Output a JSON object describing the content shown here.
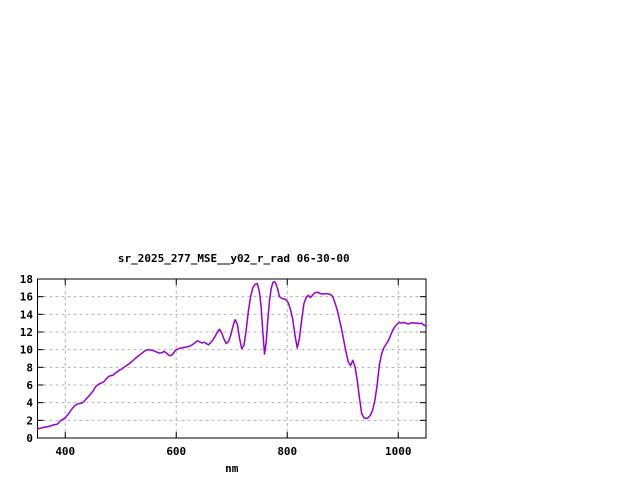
{
  "window": {
    "background": "#ffffff"
  },
  "colors": {
    "line": "#9400d3",
    "grid": "#b4b4b4",
    "border": "#000000",
    "text": "#000000"
  },
  "chart_data": {
    "type": "line",
    "title": "sr_2025_277_MSE__y02_r_rad 06-30-00",
    "xlabel": "nm",
    "ylabel": "",
    "xlim": [
      350,
      1050
    ],
    "ylim": [
      0,
      18
    ],
    "xticks": [
      400,
      600,
      800,
      1000
    ],
    "yticks": [
      0,
      2,
      4,
      6,
      8,
      10,
      12,
      14,
      16,
      18
    ],
    "grid": true,
    "legend": false,
    "series": [
      {
        "name": "sr_2025_277_MSE__y02_r_rad",
        "x": [
          350,
          355,
          360,
          365,
          370,
          375,
          380,
          385,
          388,
          391,
          394,
          398,
          402,
          406,
          410,
          414,
          418,
          422,
          426,
          430,
          434,
          438,
          442,
          446,
          450,
          454,
          458,
          462,
          466,
          470,
          474,
          478,
          482,
          486,
          490,
          494,
          498,
          502,
          506,
          510,
          514,
          518,
          522,
          526,
          530,
          534,
          538,
          542,
          546,
          550,
          554,
          558,
          562,
          566,
          570,
          574,
          578,
          582,
          586,
          590,
          594,
          598,
          602,
          606,
          610,
          614,
          618,
          622,
          626,
          630,
          634,
          638,
          642,
          646,
          650,
          654,
          658,
          662,
          666,
          670,
          674,
          678,
          682,
          686,
          690,
          694,
          698,
          702,
          706,
          710,
          714,
          718,
          722,
          726,
          730,
          734,
          738,
          742,
          746,
          750,
          753,
          756,
          759,
          762,
          765,
          768,
          771,
          774,
          777,
          780,
          783,
          786,
          790,
          794,
          798,
          802,
          806,
          810,
          814,
          818,
          822,
          826,
          830,
          834,
          838,
          842,
          846,
          850,
          854,
          858,
          862,
          866,
          870,
          874,
          878,
          882,
          886,
          890,
          894,
          898,
          902,
          906,
          910,
          914,
          918,
          922,
          926,
          930,
          934,
          938,
          942,
          946,
          950,
          954,
          958,
          962,
          966,
          970,
          974,
          978,
          982,
          986,
          990,
          994,
          998,
          1002,
          1006,
          1010,
          1014,
          1018,
          1022,
          1026,
          1030,
          1034,
          1038,
          1042,
          1046,
          1050
        ],
        "y": [
          1.05,
          1.1,
          1.2,
          1.25,
          1.3,
          1.4,
          1.5,
          1.55,
          1.7,
          1.95,
          2.05,
          2.2,
          2.45,
          2.75,
          3.1,
          3.45,
          3.7,
          3.85,
          3.9,
          3.95,
          4.15,
          4.45,
          4.7,
          5.0,
          5.3,
          5.75,
          6.0,
          6.15,
          6.25,
          6.4,
          6.7,
          6.95,
          7.05,
          7.1,
          7.35,
          7.5,
          7.7,
          7.8,
          8.0,
          8.2,
          8.35,
          8.55,
          8.75,
          9.0,
          9.2,
          9.4,
          9.6,
          9.8,
          9.95,
          10.0,
          9.95,
          9.9,
          9.8,
          9.7,
          9.6,
          9.65,
          9.8,
          9.65,
          9.4,
          9.3,
          9.5,
          9.9,
          10.05,
          10.15,
          10.2,
          10.25,
          10.3,
          10.35,
          10.45,
          10.6,
          10.8,
          11.0,
          10.9,
          10.75,
          10.85,
          10.7,
          10.55,
          10.8,
          11.1,
          11.5,
          12.0,
          12.3,
          11.9,
          11.2,
          10.7,
          10.9,
          11.6,
          12.6,
          13.4,
          12.9,
          11.3,
          10.1,
          10.5,
          12.2,
          14.4,
          16.0,
          17.0,
          17.4,
          17.5,
          16.5,
          14.8,
          12.0,
          9.5,
          10.8,
          13.4,
          15.5,
          16.9,
          17.6,
          17.7,
          17.4,
          16.8,
          16.0,
          15.8,
          15.75,
          15.65,
          15.3,
          14.5,
          13.4,
          11.6,
          10.2,
          11.3,
          13.4,
          15.2,
          15.9,
          16.15,
          15.9,
          16.2,
          16.45,
          16.5,
          16.4,
          16.3,
          16.3,
          16.35,
          16.3,
          16.25,
          16.0,
          15.3,
          14.5,
          13.4,
          12.3,
          11.0,
          9.7,
          8.6,
          8.2,
          8.8,
          8.1,
          6.6,
          4.6,
          2.8,
          2.3,
          2.2,
          2.3,
          2.6,
          3.2,
          4.3,
          6.0,
          8.3,
          9.5,
          10.2,
          10.6,
          11.0,
          11.6,
          12.2,
          12.6,
          12.9,
          13.1,
          13.0,
          13.1,
          13.0,
          12.9,
          13.0,
          13.05,
          13.0,
          13.0,
          12.95,
          13.0,
          12.8,
          12.65
        ]
      }
    ]
  }
}
